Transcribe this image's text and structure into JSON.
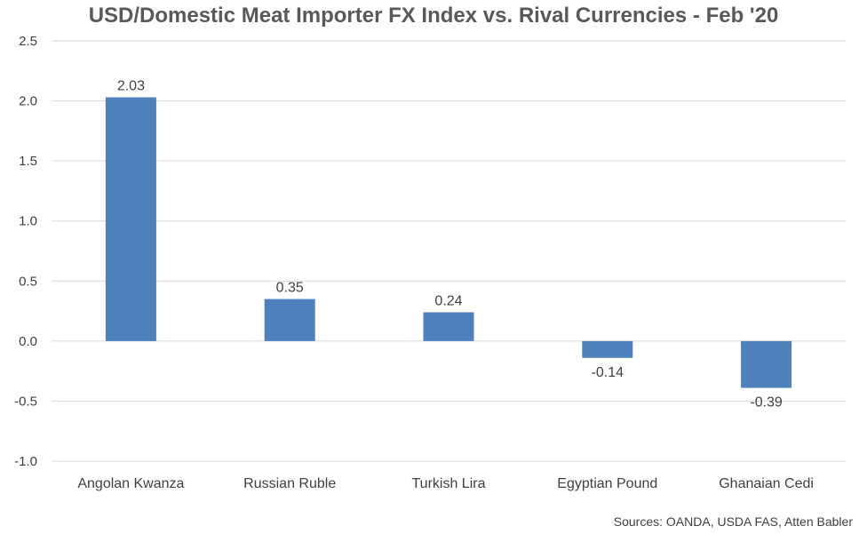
{
  "chart_data": {
    "type": "bar",
    "title": "USD/Domestic Meat Importer FX Index vs. Rival Currencies - Feb '20",
    "xlabel": "",
    "ylabel": "",
    "categories": [
      "Angolan Kwanza",
      "Russian Ruble",
      "Turkish Lira",
      "Egyptian Pound",
      "Ghanaian Cedi"
    ],
    "values": [
      2.03,
      0.35,
      0.24,
      -0.14,
      -0.39
    ],
    "value_labels": [
      "2.03",
      "0.35",
      "0.24",
      "-0.14",
      "-0.39"
    ],
    "ylim": [
      -1.0,
      2.5
    ],
    "yticks": [
      2.5,
      2.0,
      1.5,
      1.0,
      0.5,
      0.0,
      -0.5,
      -1.0
    ],
    "ytick_labels": [
      "2.5",
      "2.0",
      "1.5",
      "1.0",
      "0.5",
      "0.0",
      "-0.5",
      "-1.0"
    ],
    "grid": true,
    "legend": "none",
    "source": "Sources: OANDA, USDA FAS, Atten Babler",
    "colors": {
      "bar": "#4F81BD",
      "grid": "#D9D9D9",
      "text": "#404040",
      "title": "#595959"
    }
  }
}
